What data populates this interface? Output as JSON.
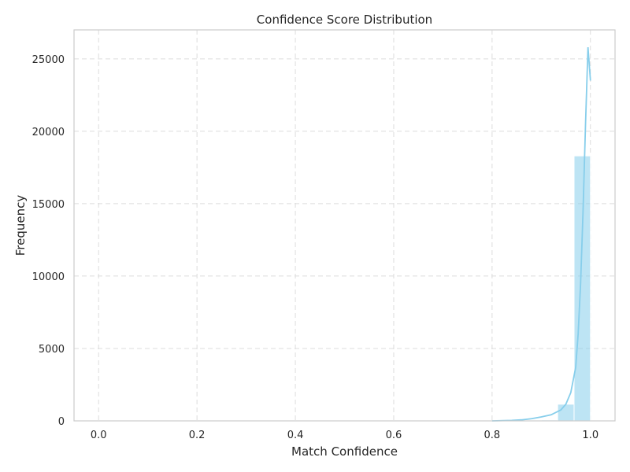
{
  "chart_data": {
    "type": "bar",
    "title": "Confidence Score Distribution",
    "xlabel": "Match Confidence",
    "ylabel": "Frequency",
    "xlim": [
      -0.05,
      1.05
    ],
    "ylim": [
      0,
      27000
    ],
    "xticks": [
      0.0,
      0.2,
      0.4,
      0.6,
      0.8,
      1.0
    ],
    "xtick_labels": [
      "0.0",
      "0.2",
      "0.4",
      "0.6",
      "0.8",
      "1.0"
    ],
    "yticks": [
      0,
      5000,
      10000,
      15000,
      20000,
      25000
    ],
    "ytick_labels": [
      "0",
      "5000",
      "10000",
      "15000",
      "20000",
      "25000"
    ],
    "grid": true,
    "bar_color": "#87ceeb",
    "kde_color": "#87ceeb",
    "bins": [
      {
        "x0": 0.8667,
        "x1": 0.9,
        "value": 20
      },
      {
        "x0": 0.9,
        "x1": 0.9333,
        "value": 60
      },
      {
        "x0": 0.9333,
        "x1": 0.9667,
        "value": 1150
      },
      {
        "x0": 0.9667,
        "x1": 1.0,
        "value": 18300
      }
    ],
    "kde": {
      "x": [
        0.8,
        0.84,
        0.86,
        0.88,
        0.9,
        0.92,
        0.94,
        0.95,
        0.96,
        0.97,
        0.975,
        0.98,
        0.985,
        0.99,
        0.995,
        1.0
      ],
      "y": [
        0,
        30,
        70,
        150,
        270,
        420,
        760,
        1150,
        1950,
        3700,
        6000,
        9500,
        14500,
        20500,
        25800,
        23500
      ]
    }
  }
}
